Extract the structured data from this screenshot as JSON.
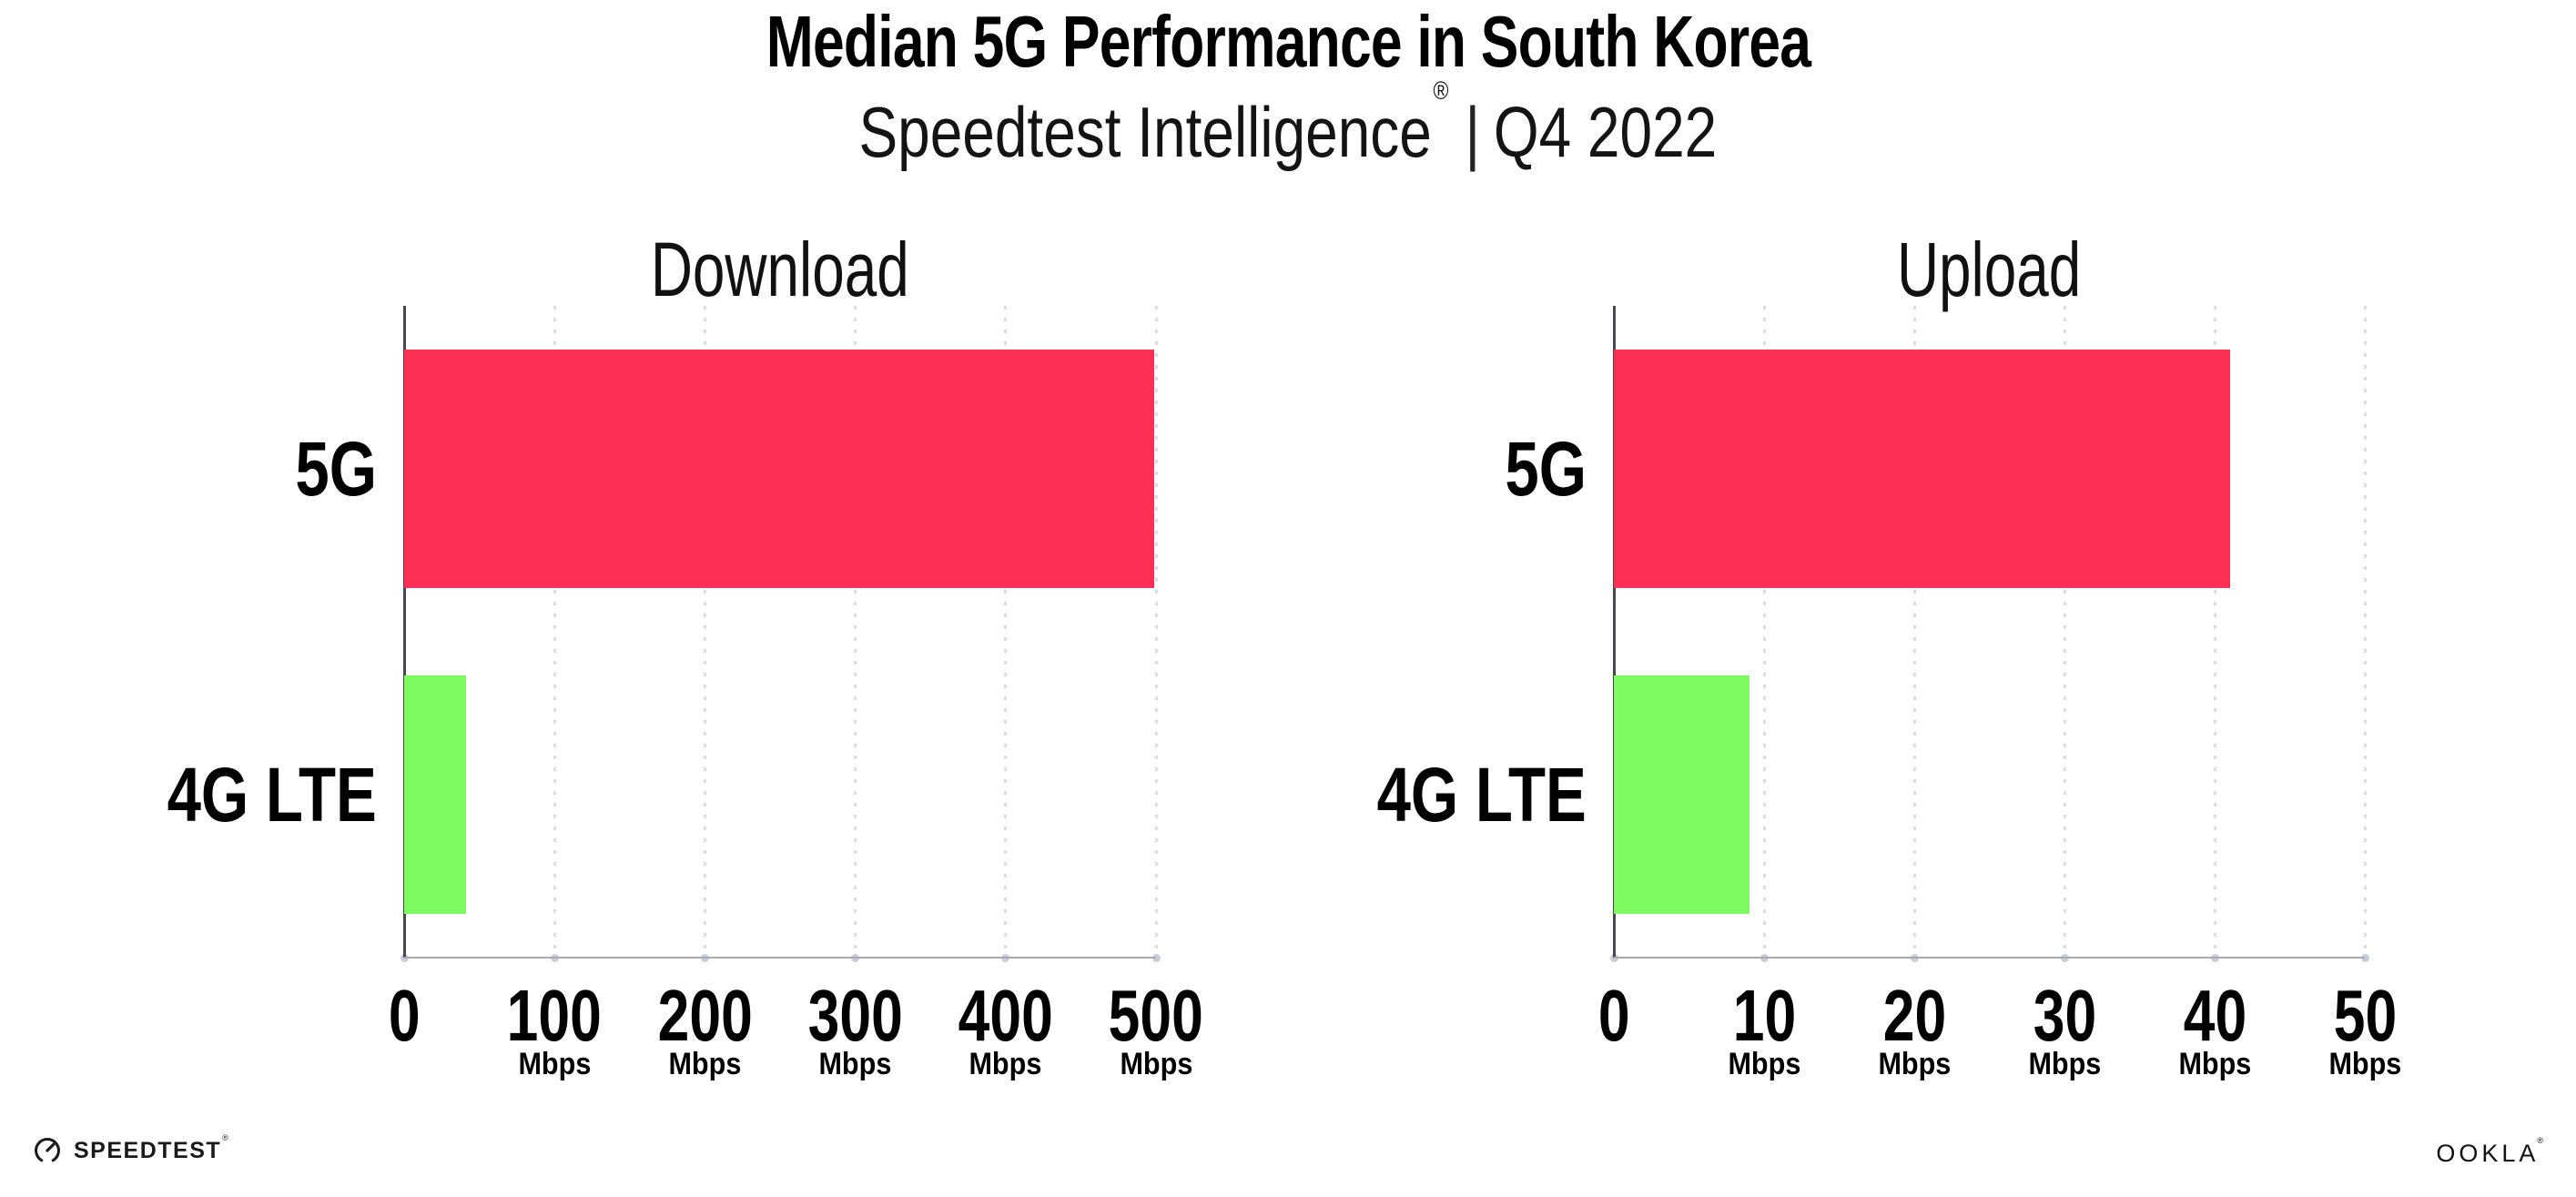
{
  "header": {
    "title": "Median 5G Performance in South Korea",
    "subtitle_brand": "Speedtest Intelligence",
    "subtitle_reg": "®",
    "subtitle_sep": "|",
    "subtitle_period": "Q4 2022"
  },
  "chart_data": [
    {
      "type": "bar",
      "orientation": "horizontal",
      "title": "Download",
      "categories": [
        "5G",
        "4G LTE"
      ],
      "values": [
        499,
        41
      ],
      "unit": "Mbps",
      "xlabel": "",
      "ylabel": "",
      "xlim": [
        0,
        500
      ],
      "xticks": [
        0,
        100,
        200,
        300,
        400,
        500
      ],
      "grid": "vertical-dotted",
      "legend": "none",
      "bar_colors": [
        "#fd2f55",
        "#7ffb62"
      ]
    },
    {
      "type": "bar",
      "orientation": "horizontal",
      "title": "Upload",
      "categories": [
        "5G",
        "4G LTE"
      ],
      "values": [
        41,
        9
      ],
      "unit": "Mbps",
      "xlabel": "",
      "ylabel": "",
      "xlim": [
        0,
        50
      ],
      "xticks": [
        0,
        10,
        20,
        30,
        40,
        50
      ],
      "grid": "vertical-dotted",
      "legend": "none",
      "bar_colors": [
        "#fd2f55",
        "#7ffb62"
      ]
    }
  ],
  "colors": {
    "bar_5g": "#fd2f55",
    "bar_4g_lte": "#7ffb62",
    "y_axis": "#47474d",
    "x_axis": "#a8a8b0",
    "gridline": "#dbdce6",
    "text": "#000000"
  },
  "footer": {
    "speedtest_label": "SPEEDTEST",
    "speedtest_reg": "®",
    "ookla_label": "OOKLA",
    "ookla_reg": "®"
  }
}
